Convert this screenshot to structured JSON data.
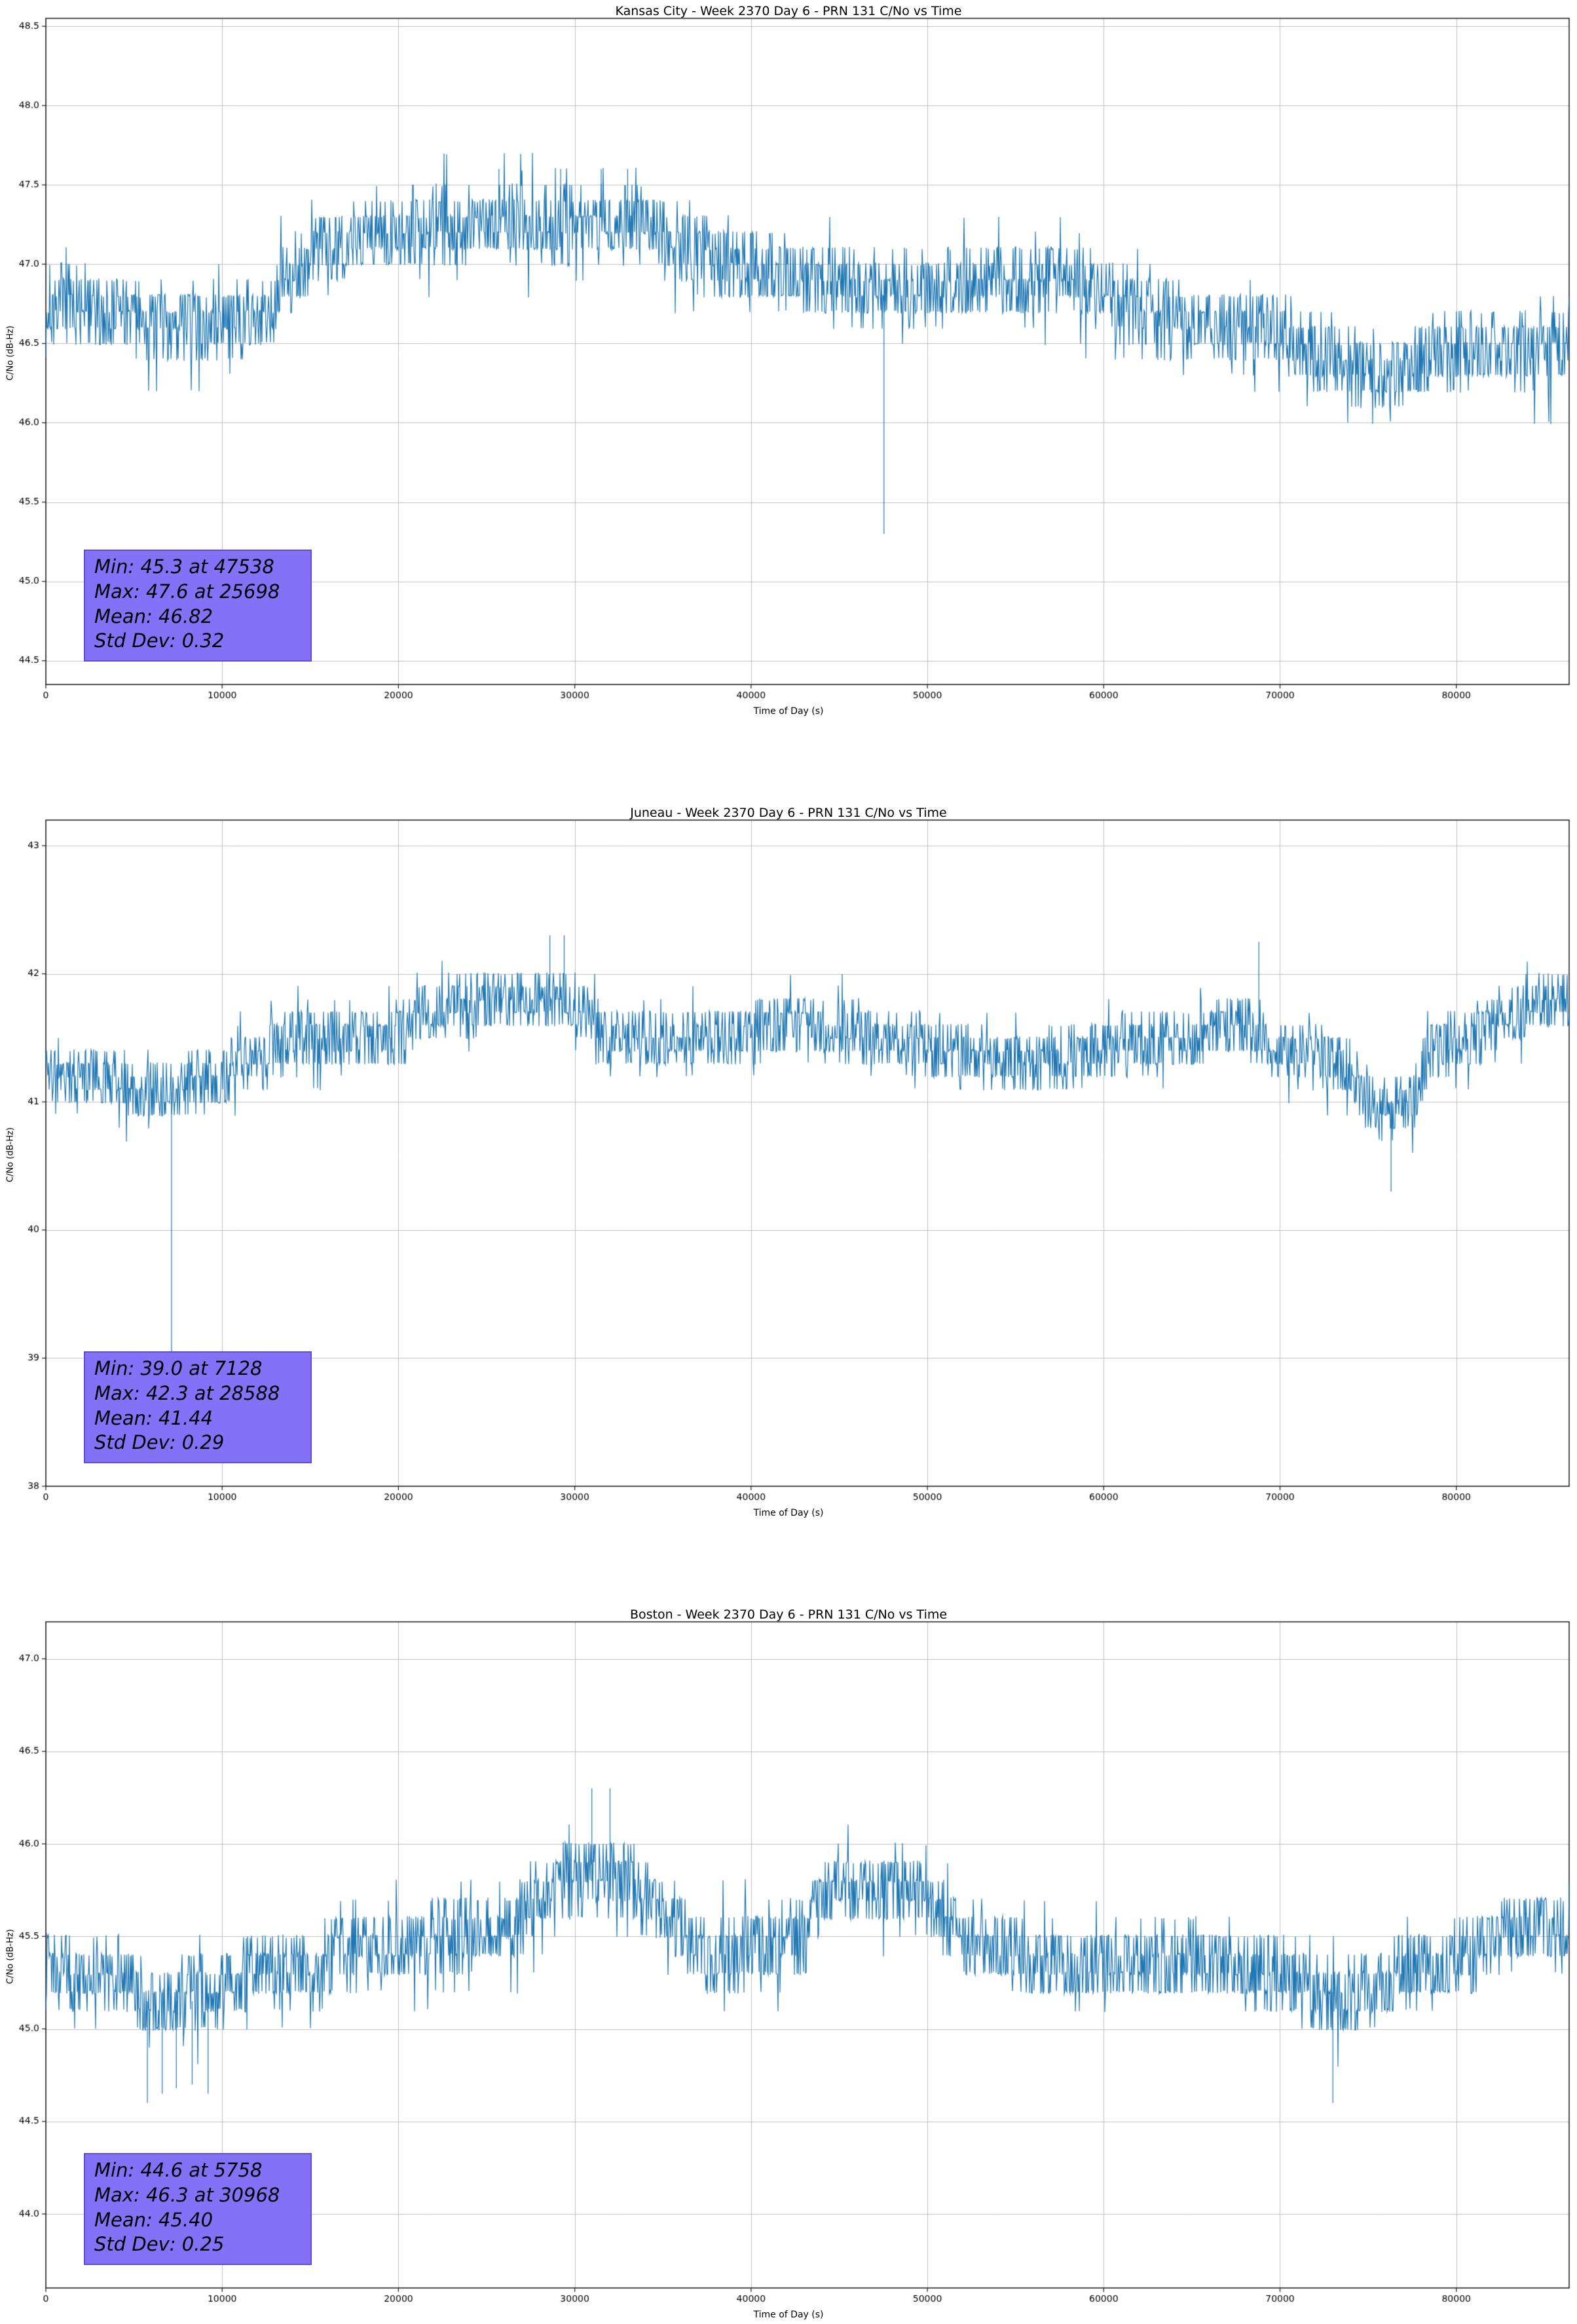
{
  "chart_data": [
    {
      "type": "line",
      "title": "Kansas City - Week 2370 Day 6 - PRN 131 C/No vs Time",
      "xlabel": "Time of Day (s)",
      "ylabel": "C/No (dB-Hz)",
      "xlim": [
        0,
        86400
      ],
      "ylim": [
        44.35,
        48.55
      ],
      "xticks": [
        0,
        10000,
        20000,
        30000,
        40000,
        50000,
        60000,
        70000,
        80000
      ],
      "yticks": [
        44.5,
        45.0,
        45.5,
        46.0,
        46.5,
        47.0,
        47.5,
        48.0,
        48.5
      ],
      "ytick_decimals": 1,
      "grid": true,
      "line_color": "#1f77b4",
      "grid_color": "#c0c0c0",
      "stats": {
        "min": 45.3,
        "min_at": 47538,
        "max": 47.6,
        "max_at": 25698,
        "mean": 46.82,
        "std_dev": 0.32
      },
      "annotation": {
        "lines": [
          "Min: 45.3 at 47538",
          "Max: 47.6 at 25698",
          "Mean: 46.82",
          "Std Dev: 0.32"
        ],
        "bg": "#8372f8",
        "border": "#5c4fd6"
      },
      "trend": [
        [
          0,
          46.7
        ],
        [
          6000,
          46.62
        ],
        [
          12000,
          46.7
        ],
        [
          14000,
          47.0
        ],
        [
          17000,
          47.15
        ],
        [
          24000,
          47.2
        ],
        [
          26000,
          47.3
        ],
        [
          33500,
          47.3
        ],
        [
          35500,
          47.15
        ],
        [
          38000,
          46.95
        ],
        [
          46000,
          46.9
        ],
        [
          52000,
          46.9
        ],
        [
          58000,
          46.85
        ],
        [
          62000,
          46.7
        ],
        [
          70000,
          46.6
        ],
        [
          72500,
          46.4
        ],
        [
          76000,
          46.25
        ],
        [
          79000,
          46.45
        ],
        [
          82000,
          46.5
        ],
        [
          86400,
          46.5
        ]
      ],
      "noise": {
        "band": 0.24,
        "seed": 7
      },
      "spikes_down": [
        [
          47538,
          45.3
        ]
      ],
      "spikes_up": [
        [
          25698,
          47.6
        ],
        [
          29200,
          47.6
        ],
        [
          31500,
          47.6
        ],
        [
          33000,
          47.6
        ]
      ]
    },
    {
      "type": "line",
      "title": "Juneau - Week 2370 Day 6 - PRN 131 C/No vs Time",
      "xlabel": "Time of Day (s)",
      "ylabel": "C/No (dB-Hz)",
      "xlim": [
        0,
        86400
      ],
      "ylim": [
        38,
        43.2
      ],
      "xticks": [
        0,
        10000,
        20000,
        30000,
        40000,
        50000,
        60000,
        70000,
        80000
      ],
      "yticks": [
        38,
        39,
        40,
        41,
        42,
        43
      ],
      "ytick_decimals": 0,
      "grid": true,
      "line_color": "#1f77b4",
      "grid_color": "#c0c0c0",
      "stats": {
        "min": 39.0,
        "min_at": 7128,
        "max": 42.3,
        "max_at": 28588,
        "mean": 41.44,
        "std_dev": 0.29
      },
      "annotation": {
        "lines": [
          "Min: 39.0 at 7128",
          "Max: 42.3 at 28588",
          "Mean: 41.44",
          "Std Dev: 0.29"
        ],
        "bg": "#8372f8",
        "border": "#5c4fd6"
      },
      "trend": [
        [
          0,
          41.3
        ],
        [
          4000,
          41.2
        ],
        [
          5500,
          41.05
        ],
        [
          9000,
          41.1
        ],
        [
          12000,
          41.3
        ],
        [
          14000,
          41.5
        ],
        [
          20000,
          41.55
        ],
        [
          21500,
          41.75
        ],
        [
          30000,
          41.75
        ],
        [
          31500,
          41.5
        ],
        [
          40000,
          41.55
        ],
        [
          41000,
          41.6
        ],
        [
          47000,
          41.45
        ],
        [
          56000,
          41.35
        ],
        [
          65000,
          41.45
        ],
        [
          68000,
          41.6
        ],
        [
          70000,
          41.45
        ],
        [
          74000,
          41.3
        ],
        [
          75000,
          41.0
        ],
        [
          77500,
          41.0
        ],
        [
          78500,
          41.4
        ],
        [
          82000,
          41.5
        ],
        [
          84000,
          41.7
        ],
        [
          86400,
          41.85
        ]
      ],
      "noise": {
        "band": 0.24,
        "seed": 11
      },
      "spikes_down": [
        [
          7128,
          39.0
        ],
        [
          76300,
          40.3
        ]
      ],
      "spikes_up": [
        [
          28588,
          42.3
        ],
        [
          29400,
          42.3
        ],
        [
          68800,
          42.25
        ]
      ]
    },
    {
      "type": "line",
      "title": "Boston - Week 2370 Day 6 - PRN 131 C/No vs Time",
      "xlabel": "Time of Day (s)",
      "ylabel": "C/No (dB-Hz)",
      "xlim": [
        0,
        86400
      ],
      "ylim": [
        43.6,
        47.2
      ],
      "xticks": [
        0,
        10000,
        20000,
        30000,
        40000,
        50000,
        60000,
        70000,
        80000
      ],
      "yticks": [
        44.0,
        44.5,
        45.0,
        45.5,
        46.0,
        46.5,
        47.0
      ],
      "ytick_decimals": 1,
      "grid": true,
      "line_color": "#1f77b4",
      "grid_color": "#c0c0c0",
      "stats": {
        "min": 44.6,
        "min_at": 5758,
        "max": 46.3,
        "max_at": 30968,
        "mean": 45.4,
        "std_dev": 0.25
      },
      "annotation": {
        "lines": [
          "Min: 44.6 at 5758",
          "Max: 46.3 at 30968",
          "Mean: 45.40",
          "Std Dev: 0.25"
        ],
        "bg": "#8372f8",
        "border": "#5c4fd6"
      },
      "trend": [
        [
          0,
          45.35
        ],
        [
          4500,
          45.3
        ],
        [
          5500,
          45.15
        ],
        [
          10000,
          45.15
        ],
        [
          11000,
          45.25
        ],
        [
          15500,
          45.3
        ],
        [
          16500,
          45.45
        ],
        [
          19000,
          45.5
        ],
        [
          27000,
          45.55
        ],
        [
          28000,
          45.7
        ],
        [
          31000,
          45.8
        ],
        [
          33000,
          45.8
        ],
        [
          36000,
          45.6
        ],
        [
          37000,
          45.45
        ],
        [
          43000,
          45.5
        ],
        [
          44000,
          45.7
        ],
        [
          50000,
          45.7
        ],
        [
          51000,
          45.55
        ],
        [
          55000,
          45.45
        ],
        [
          60000,
          45.35
        ],
        [
          70000,
          45.3
        ],
        [
          73000,
          45.2
        ],
        [
          76000,
          45.3
        ],
        [
          82000,
          45.4
        ],
        [
          84000,
          45.5
        ],
        [
          86400,
          45.5
        ]
      ],
      "noise": {
        "band": 0.2,
        "seed": 23
      },
      "spikes_down": [
        [
          5758,
          44.6
        ],
        [
          6600,
          44.65
        ],
        [
          7400,
          44.68
        ],
        [
          8300,
          44.7
        ],
        [
          9200,
          44.65
        ],
        [
          73000,
          44.6
        ]
      ],
      "spikes_up": [
        [
          30968,
          46.3
        ],
        [
          32000,
          46.3
        ]
      ]
    }
  ]
}
